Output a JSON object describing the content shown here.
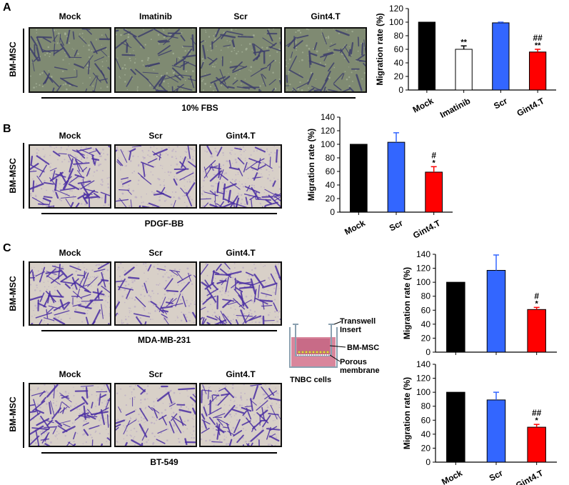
{
  "panels": {
    "A": {
      "letter": "A",
      "row_label": "BM-MSC",
      "columns": [
        "Mock",
        "Imatinib",
        "Scr",
        "Gint4.T"
      ],
      "condition": "10% FBS",
      "image_tones": [
        "green",
        "green",
        "green",
        "green"
      ]
    },
    "B": {
      "letter": "B",
      "row_label": "BM-MSC",
      "columns": [
        "Mock",
        "Scr",
        "Gint4.T"
      ],
      "condition": "PDGF-BB",
      "image_tones": [
        "purple",
        "purple",
        "purple"
      ]
    },
    "C": {
      "letter": "C",
      "top": {
        "row_label": "BM-MSC",
        "columns": [
          "Mock",
          "Scr",
          "Gint4.T"
        ],
        "condition": "MDA-MB-231",
        "image_tones": [
          "purple",
          "purple",
          "purple"
        ]
      },
      "bottom": {
        "row_label": "BM-MSC",
        "columns": [
          "Mock",
          "Scr",
          "Gint4.T"
        ],
        "condition": "BT-549",
        "image_tones": [
          "purple",
          "purple",
          "purple"
        ]
      }
    }
  },
  "diagram": {
    "labels": {
      "insert": "Transwell\nInsert",
      "cells": "BM-MSC",
      "membrane": "Porous\nmembrane",
      "bottom": "TNBC cells"
    },
    "colors": {
      "medium": "#d9869c",
      "cells": "#e8d84a",
      "frame": "#8aa0b0"
    }
  },
  "chart_data": [
    {
      "type": "bar",
      "panel": "A",
      "categories": [
        "Mock",
        "Imatinib",
        "Scr",
        "Gint4.T"
      ],
      "values": [
        100,
        60,
        99,
        56
      ],
      "errors": [
        0,
        5,
        1,
        4
      ],
      "annotations": [
        [
          "",
          ""
        ],
        [
          "**",
          ""
        ],
        [
          "",
          ""
        ],
        [
          "**",
          "##"
        ]
      ],
      "colors": [
        "#000000",
        "#ffffff",
        "#3366ff",
        "#ff0000"
      ],
      "ylabel": "Migration rate (%)",
      "ylim": [
        0,
        120
      ],
      "yticks": [
        0,
        20,
        40,
        60,
        80,
        100,
        120
      ]
    },
    {
      "type": "bar",
      "panel": "B",
      "categories": [
        "Mock",
        "Scr",
        "Gint4.T"
      ],
      "values": [
        100,
        103,
        59
      ],
      "errors": [
        0,
        14,
        8
      ],
      "annotations": [
        [
          "",
          ""
        ],
        [
          "",
          ""
        ],
        [
          "*",
          "#"
        ]
      ],
      "colors": [
        "#000000",
        "#3366ff",
        "#ff0000"
      ],
      "ylabel": "Migration rate (%)",
      "ylim": [
        0,
        140
      ],
      "yticks": [
        0,
        20,
        40,
        60,
        80,
        100,
        120,
        140
      ]
    },
    {
      "type": "bar",
      "panel": "C-MDA-MB-231",
      "categories": [
        "Mock",
        "Scr",
        "Gint4.T"
      ],
      "values": [
        100,
        117,
        61
      ],
      "errors": [
        0,
        22,
        3
      ],
      "annotations": [
        [
          "",
          ""
        ],
        [
          "",
          ""
        ],
        [
          "*",
          "#"
        ]
      ],
      "colors": [
        "#000000",
        "#3366ff",
        "#ff0000"
      ],
      "ylabel": "Migration rate (%)",
      "ylim": [
        0,
        140
      ],
      "yticks": [
        0,
        20,
        40,
        60,
        80,
        100,
        120,
        140
      ],
      "show_xlabels": false
    },
    {
      "type": "bar",
      "panel": "C-BT-549",
      "categories": [
        "Mock",
        "Scr",
        "Gint4.T"
      ],
      "values": [
        100,
        89,
        50
      ],
      "errors": [
        0,
        11,
        4
      ],
      "annotations": [
        [
          "",
          ""
        ],
        [
          "",
          ""
        ],
        [
          "*",
          "##"
        ]
      ],
      "colors": [
        "#000000",
        "#3366ff",
        "#ff0000"
      ],
      "ylabel": "Migration rate (%)",
      "ylim": [
        0,
        140
      ],
      "yticks": [
        0,
        20,
        40,
        60,
        80,
        100,
        120,
        140
      ],
      "show_xlabels": true
    }
  ]
}
